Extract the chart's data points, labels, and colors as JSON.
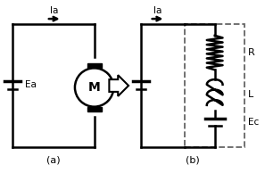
{
  "bg_color": "#ffffff",
  "line_color": "#000000",
  "dashed_color": "#666666",
  "label_a": "(a)",
  "label_b": "(b)",
  "label_Ea": "Ea",
  "label_Ia_a": "Ia",
  "label_Ia_b": "Ia",
  "label_M": "M",
  "label_R": "R",
  "label_L": "L",
  "label_Ec": "Ec"
}
